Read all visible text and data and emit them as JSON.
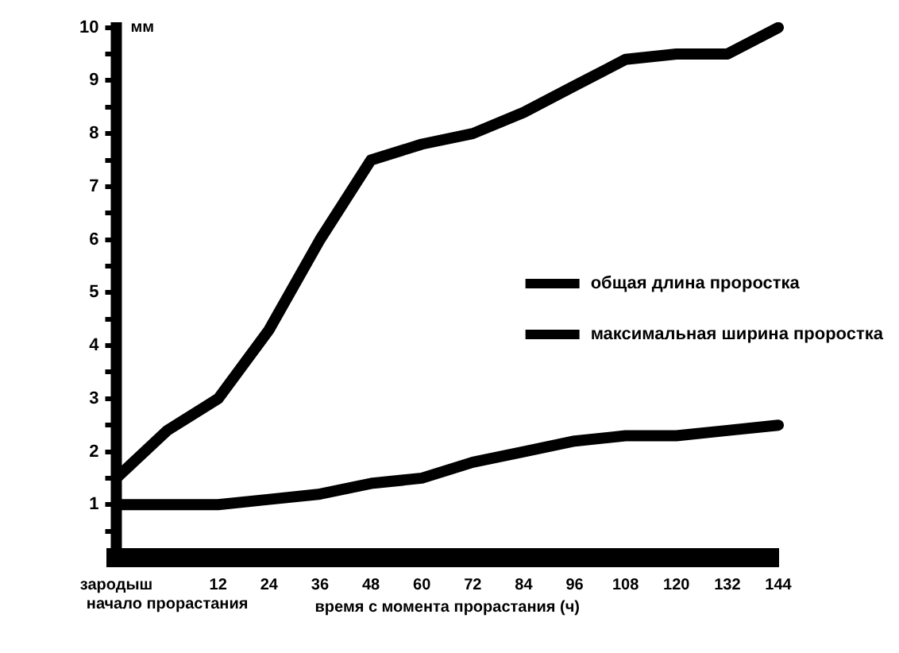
{
  "chart_data": {
    "type": "line",
    "xlabel": "время с момента прорастания (ч)",
    "ylabel": "мм",
    "categories": [
      "зародыш",
      "начало прорастания",
      "12",
      "24",
      "36",
      "48",
      "60",
      "72",
      "84",
      "96",
      "108",
      "120",
      "132",
      "144"
    ],
    "ylim": [
      0,
      10.1
    ],
    "yticks": [
      {
        "value": 0.5,
        "label": null
      },
      1,
      {
        "value": 1.5,
        "label": null
      },
      2,
      {
        "value": 2.5,
        "label": null
      },
      3,
      {
        "value": 3.5,
        "label": null
      },
      4,
      {
        "value": 4.5,
        "label": null
      },
      5,
      {
        "value": 5.5,
        "label": null
      },
      6,
      {
        "value": 6.5,
        "label": null
      },
      7,
      {
        "value": 7.5,
        "label": null
      },
      8,
      {
        "value": 8.5,
        "label": null
      },
      9,
      {
        "value": 9.5,
        "label": null
      },
      10
    ],
    "grid": false,
    "legend": "right",
    "marker": "none",
    "line_style": "solid",
    "series": [
      {
        "name": "общая длина проростка",
        "color": "#000000",
        "values": [
          1.5,
          2.4,
          3.0,
          4.3,
          6.0,
          7.5,
          7.8,
          8.0,
          8.4,
          8.9,
          9.4,
          9.5,
          9.5,
          10.0
        ]
      },
      {
        "name": "максимальная ширина проростка",
        "color": "#000000",
        "values": [
          1.0,
          1.0,
          1.0,
          1.1,
          1.2,
          1.4,
          1.5,
          1.8,
          2.0,
          2.2,
          2.3,
          2.3,
          2.4,
          2.5
        ]
      }
    ]
  }
}
